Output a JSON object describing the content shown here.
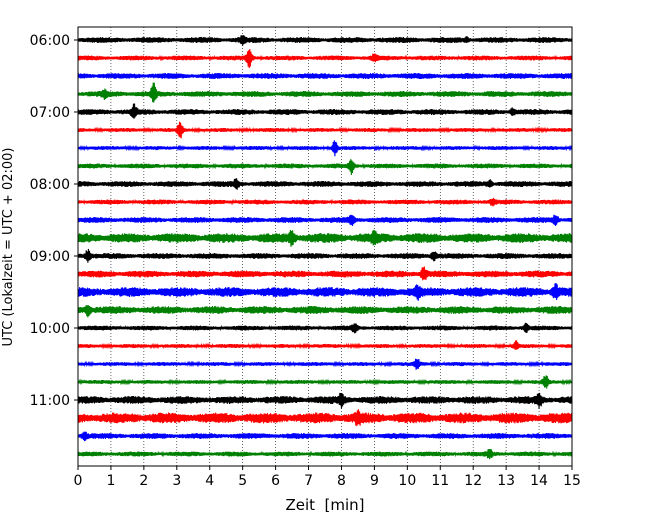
{
  "chart_data": {
    "type": "line",
    "chart_kind": "helicorder (seismogram trace stack)",
    "xlabel": "Zeit  [min]",
    "ylabel": "UTC (Lokalzeit = UTC + 02:00)",
    "xlim": [
      0,
      15
    ],
    "x_ticks": [
      0,
      1,
      2,
      3,
      4,
      5,
      6,
      7,
      8,
      9,
      10,
      11,
      12,
      13,
      14,
      15
    ],
    "x_tick_labels": [
      "0",
      "1",
      "2",
      "3",
      "4",
      "5",
      "6",
      "7",
      "8",
      "9",
      "10",
      "11",
      "12",
      "13",
      "14",
      "15"
    ],
    "y_tick_labels": [
      "06:00",
      "07:00",
      "08:00",
      "09:00",
      "10:00",
      "11:00"
    ],
    "y_tick_rows": [
      0,
      4,
      8,
      12,
      16,
      20
    ],
    "grid": "vertical dotted lines at each minute",
    "colors": [
      "#000000",
      "#ff0000",
      "#0000ff",
      "#008000"
    ],
    "series": [
      {
        "start": "06:00",
        "color_index": 0,
        "amplitude": 3,
        "events": [
          {
            "t": 5.0,
            "a": 3
          },
          {
            "t": 11.8,
            "a": 2
          }
        ]
      },
      {
        "start": "06:15",
        "color_index": 1,
        "amplitude": 2.5,
        "events": [
          {
            "t": 5.2,
            "a": 9
          },
          {
            "t": 9.0,
            "a": 3
          }
        ]
      },
      {
        "start": "06:30",
        "color_index": 2,
        "amplitude": 3,
        "events": []
      },
      {
        "start": "06:45",
        "color_index": 3,
        "amplitude": 3,
        "events": [
          {
            "t": 2.3,
            "a": 9
          },
          {
            "t": 0.8,
            "a": 3
          }
        ]
      },
      {
        "start": "07:00",
        "color_index": 0,
        "amplitude": 3,
        "events": [
          {
            "t": 1.7,
            "a": 6
          },
          {
            "t": 13.2,
            "a": 3
          }
        ]
      },
      {
        "start": "07:15",
        "color_index": 1,
        "amplitude": 2,
        "events": [
          {
            "t": 3.1,
            "a": 8
          }
        ]
      },
      {
        "start": "07:30",
        "color_index": 2,
        "amplitude": 2,
        "events": [
          {
            "t": 7.8,
            "a": 7
          }
        ]
      },
      {
        "start": "07:45",
        "color_index": 3,
        "amplitude": 2.5,
        "events": [
          {
            "t": 8.3,
            "a": 7
          }
        ]
      },
      {
        "start": "08:00",
        "color_index": 0,
        "amplitude": 3,
        "events": [
          {
            "t": 4.8,
            "a": 4
          },
          {
            "t": 12.5,
            "a": 3
          }
        ]
      },
      {
        "start": "08:15",
        "color_index": 1,
        "amplitude": 2.5,
        "events": [
          {
            "t": 12.6,
            "a": 3
          }
        ]
      },
      {
        "start": "08:30",
        "color_index": 2,
        "amplitude": 3,
        "events": [
          {
            "t": 14.5,
            "a": 5
          },
          {
            "t": 8.3,
            "a": 4
          }
        ]
      },
      {
        "start": "08:45",
        "color_index": 3,
        "amplitude": 5,
        "events": [
          {
            "t": 6.5,
            "a": 6
          },
          {
            "t": 9.0,
            "a": 5
          }
        ]
      },
      {
        "start": "09:00",
        "color_index": 0,
        "amplitude": 3,
        "events": [
          {
            "t": 0.3,
            "a": 6
          },
          {
            "t": 10.8,
            "a": 5
          }
        ]
      },
      {
        "start": "09:15",
        "color_index": 1,
        "amplitude": 3.5,
        "events": [
          {
            "t": 10.5,
            "a": 6
          }
        ]
      },
      {
        "start": "09:30",
        "color_index": 2,
        "amplitude": 5,
        "events": [
          {
            "t": 14.5,
            "a": 6
          },
          {
            "t": 10.3,
            "a": 5
          }
        ]
      },
      {
        "start": "09:45",
        "color_index": 3,
        "amplitude": 4,
        "events": [
          {
            "t": 0.3,
            "a": 5
          }
        ]
      },
      {
        "start": "10:00",
        "color_index": 0,
        "amplitude": 2.5,
        "events": [
          {
            "t": 8.4,
            "a": 4
          },
          {
            "t": 13.6,
            "a": 4
          }
        ]
      },
      {
        "start": "10:15",
        "color_index": 1,
        "amplitude": 2,
        "events": [
          {
            "t": 13.3,
            "a": 4
          }
        ]
      },
      {
        "start": "10:30",
        "color_index": 2,
        "amplitude": 2,
        "events": [
          {
            "t": 10.3,
            "a": 5
          }
        ]
      },
      {
        "start": "10:45",
        "color_index": 3,
        "amplitude": 2,
        "events": [
          {
            "t": 14.2,
            "a": 6
          }
        ]
      },
      {
        "start": "11:00",
        "color_index": 0,
        "amplitude": 4,
        "events": [
          {
            "t": 14.0,
            "a": 6
          },
          {
            "t": 8.0,
            "a": 5
          }
        ]
      },
      {
        "start": "11:15",
        "color_index": 1,
        "amplitude": 5.5,
        "events": [
          {
            "t": 8.5,
            "a": 5
          }
        ]
      },
      {
        "start": "11:30",
        "color_index": 2,
        "amplitude": 3,
        "events": [
          {
            "t": 0.2,
            "a": 4
          }
        ]
      },
      {
        "start": "11:45",
        "color_index": 3,
        "amplitude": 2.5,
        "events": [
          {
            "t": 12.5,
            "a": 4
          }
        ]
      }
    ]
  }
}
